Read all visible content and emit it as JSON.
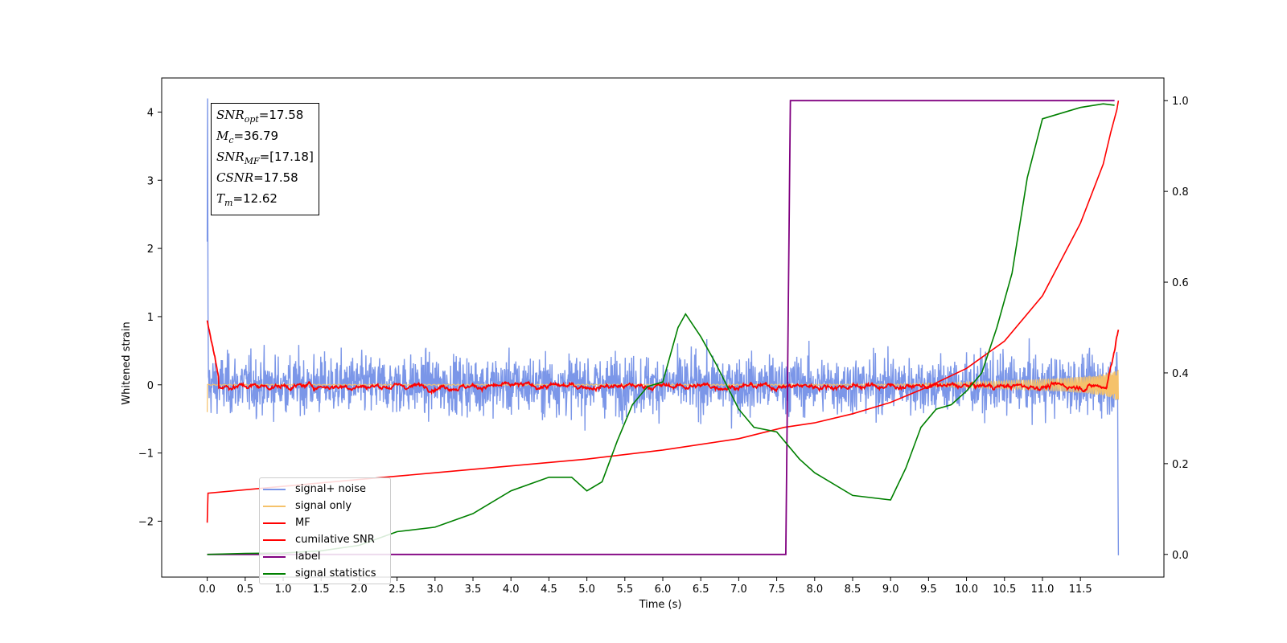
{
  "chart_data": {
    "type": "line",
    "title": "",
    "xlabel": "Time (s)",
    "ylabel": "Whitened strain",
    "ylabel_right": "",
    "xlim": [
      -0.6,
      12.6
    ],
    "ylim": [
      -2.82,
      4.5
    ],
    "ylim_right": [
      -0.05,
      1.05
    ],
    "x_ticks": [
      "0.0",
      "0.5",
      "1.0",
      "1.5",
      "2.0",
      "2.5",
      "3.0",
      "3.5",
      "4.0",
      "4.5",
      "5.0",
      "5.5",
      "6.0",
      "6.5",
      "7.0",
      "7.5",
      "8.0",
      "8.5",
      "9.0",
      "9.5",
      "10.0",
      "10.5",
      "11.0",
      "11.5"
    ],
    "y_ticks": [
      "−2",
      "−1",
      "0",
      "1",
      "2",
      "3",
      "4"
    ],
    "y_ticks_right": [
      "0.0",
      "0.2",
      "0.4",
      "0.6",
      "0.8",
      "1.0"
    ],
    "grid": false,
    "legend_position": "lower-left",
    "annotation": [
      {
        "label": "SNR",
        "sub": "opt",
        "value": "=17.58"
      },
      {
        "label": "M",
        "sub": "c",
        "value": "=36.79"
      },
      {
        "label": "SNR",
        "sub": "MF",
        "value": "=[17.18]"
      },
      {
        "label": "CSNR",
        "sub": "",
        "value": "=17.58"
      },
      {
        "label": "T",
        "sub": "m",
        "value": "=12.62"
      }
    ],
    "series": [
      {
        "name": "signal+ noise",
        "color": "#7b96e8",
        "axis": "left",
        "description_note": "noisy whitened strain, amplitude about ±1"
      },
      {
        "name": "signal only",
        "color": "#f5c26b",
        "axis": "left"
      },
      {
        "name": "MF",
        "color": "#ff0000",
        "axis": "left"
      },
      {
        "name": "cumilative SNR",
        "color": "#ff0000",
        "axis": "right",
        "x": [
          0.0,
          0.01,
          1.0,
          2.0,
          3.0,
          4.0,
          5.0,
          6.0,
          7.0,
          7.6,
          8.0,
          8.5,
          9.0,
          9.5,
          10.0,
          10.5,
          11.0,
          11.5,
          11.8,
          11.9,
          11.98,
          12.0
        ],
        "values": [
          0.07,
          0.135,
          0.15,
          0.165,
          0.18,
          0.195,
          0.21,
          0.23,
          0.255,
          0.28,
          0.29,
          0.31,
          0.335,
          0.37,
          0.41,
          0.47,
          0.57,
          0.73,
          0.86,
          0.93,
          0.98,
          1.0
        ]
      },
      {
        "name": "label",
        "color": "#800080",
        "axis": "right",
        "x": [
          0.0,
          7.62,
          7.68,
          11.95
        ],
        "values": [
          0.0,
          0.0,
          1.0,
          1.0
        ]
      },
      {
        "name": "signal statistics",
        "color": "#008000",
        "axis": "right",
        "x": [
          0.0,
          0.5,
          1.0,
          1.5,
          2.0,
          2.5,
          3.0,
          3.5,
          4.0,
          4.5,
          4.8,
          5.0,
          5.2,
          5.4,
          5.6,
          5.8,
          6.0,
          6.2,
          6.3,
          6.5,
          6.7,
          7.0,
          7.2,
          7.5,
          7.8,
          8.0,
          8.5,
          9.0,
          9.2,
          9.4,
          9.6,
          9.8,
          10.0,
          10.2,
          10.4,
          10.6,
          10.8,
          11.0,
          11.2,
          11.5,
          11.8,
          11.95
        ],
        "values": [
          0.0,
          0.002,
          0.003,
          0.008,
          0.02,
          0.05,
          0.06,
          0.09,
          0.14,
          0.17,
          0.17,
          0.14,
          0.16,
          0.25,
          0.33,
          0.37,
          0.38,
          0.5,
          0.53,
          0.48,
          0.42,
          0.32,
          0.28,
          0.27,
          0.21,
          0.18,
          0.13,
          0.12,
          0.19,
          0.28,
          0.32,
          0.33,
          0.36,
          0.4,
          0.5,
          0.62,
          0.83,
          0.96,
          0.97,
          0.985,
          0.993,
          0.99
        ]
      }
    ]
  }
}
